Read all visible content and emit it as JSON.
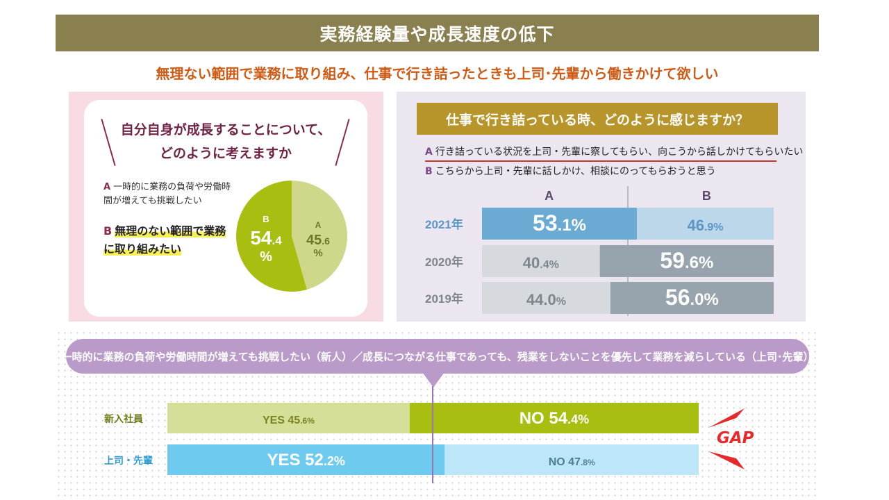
{
  "header": {
    "title": "実務経験量や成長速度の低下",
    "subtitle": "無理ない範囲で業務に取り組み、仕事で行き詰ったときも上司･先輩から働きかけて欲しい"
  },
  "left": {
    "question": "自分自身が成長することについて、\nどのように考えますか",
    "options": [
      {
        "letter": "A",
        "text": "一時的に業務の負荷や労働時間が増えても挑戦したい"
      },
      {
        "letter": "B",
        "text": "無理のない範囲で業務に取り組みたい"
      }
    ]
  },
  "right": {
    "question": "仕事で行き詰っている時、どのように感じますか？",
    "options": [
      {
        "letter": "A",
        "text": "行き詰っている状況を上司・先輩に察してもらい、向こうから話しかけてもらいたい"
      },
      {
        "letter": "B",
        "text": "こちらから上司・先輩に話しかけ、相談にのってもらおうと思う"
      }
    ]
  },
  "bottom": {
    "bubble": "一時的に業務の負荷や労働時間が増えても挑戦したい（新人）／成長につながる仕事であっても、残業をしないことを優先して業務を減らしている（上司･先輩）",
    "gap": "GAP"
  },
  "colors": {
    "pieA": "#cfd88a",
    "pieB": "#a8bf12",
    "blueDark": "#6aaad3",
    "blueLight": "#bcd6ea",
    "grayLight": "#d6dadf",
    "grayDark": "#97a3ad",
    "yesLightGreen": "#d6df98",
    "noGreen": "#a8bf12",
    "yesBlue": "#6fcaf0",
    "noLightBlue": "#bde6f8"
  },
  "chart_data": [
    {
      "type": "pie",
      "labels": [
        "A",
        "B"
      ],
      "values": [
        45.6,
        54.4
      ]
    },
    {
      "type": "bar",
      "stacked": true,
      "orientation": "horizontal",
      "categories": [
        "2021年",
        "2020年",
        "2019年"
      ],
      "series": [
        {
          "name": "A",
          "values": [
            53.1,
            40.4,
            44.0
          ]
        },
        {
          "name": "B",
          "values": [
            46.9,
            59.6,
            56.0
          ]
        }
      ],
      "value_labels": {
        "A": [
          [
            "53",
            ".1%"
          ],
          [
            "40",
            ".4%"
          ],
          [
            "44.0",
            "%"
          ]
        ],
        "B": [
          [
            "46",
            ".9%"
          ],
          [
            "59",
            ".6%"
          ],
          [
            "56",
            ".0%"
          ]
        ]
      }
    },
    {
      "type": "bar",
      "stacked": true,
      "orientation": "horizontal",
      "categories": [
        "新入社員",
        "上司・先輩"
      ],
      "series": [
        {
          "name": "YES",
          "values": [
            45.6,
            52.2
          ]
        },
        {
          "name": "NO",
          "values": [
            54.4,
            47.8
          ]
        }
      ],
      "value_labels": {
        "YES": [
          [
            "YES 45",
            ".6%"
          ],
          [
            "YES 52",
            ".2%"
          ]
        ],
        "NO": [
          [
            "NO 54",
            ".4%"
          ],
          [
            "NO 47",
            ".8%"
          ]
        ]
      }
    }
  ]
}
